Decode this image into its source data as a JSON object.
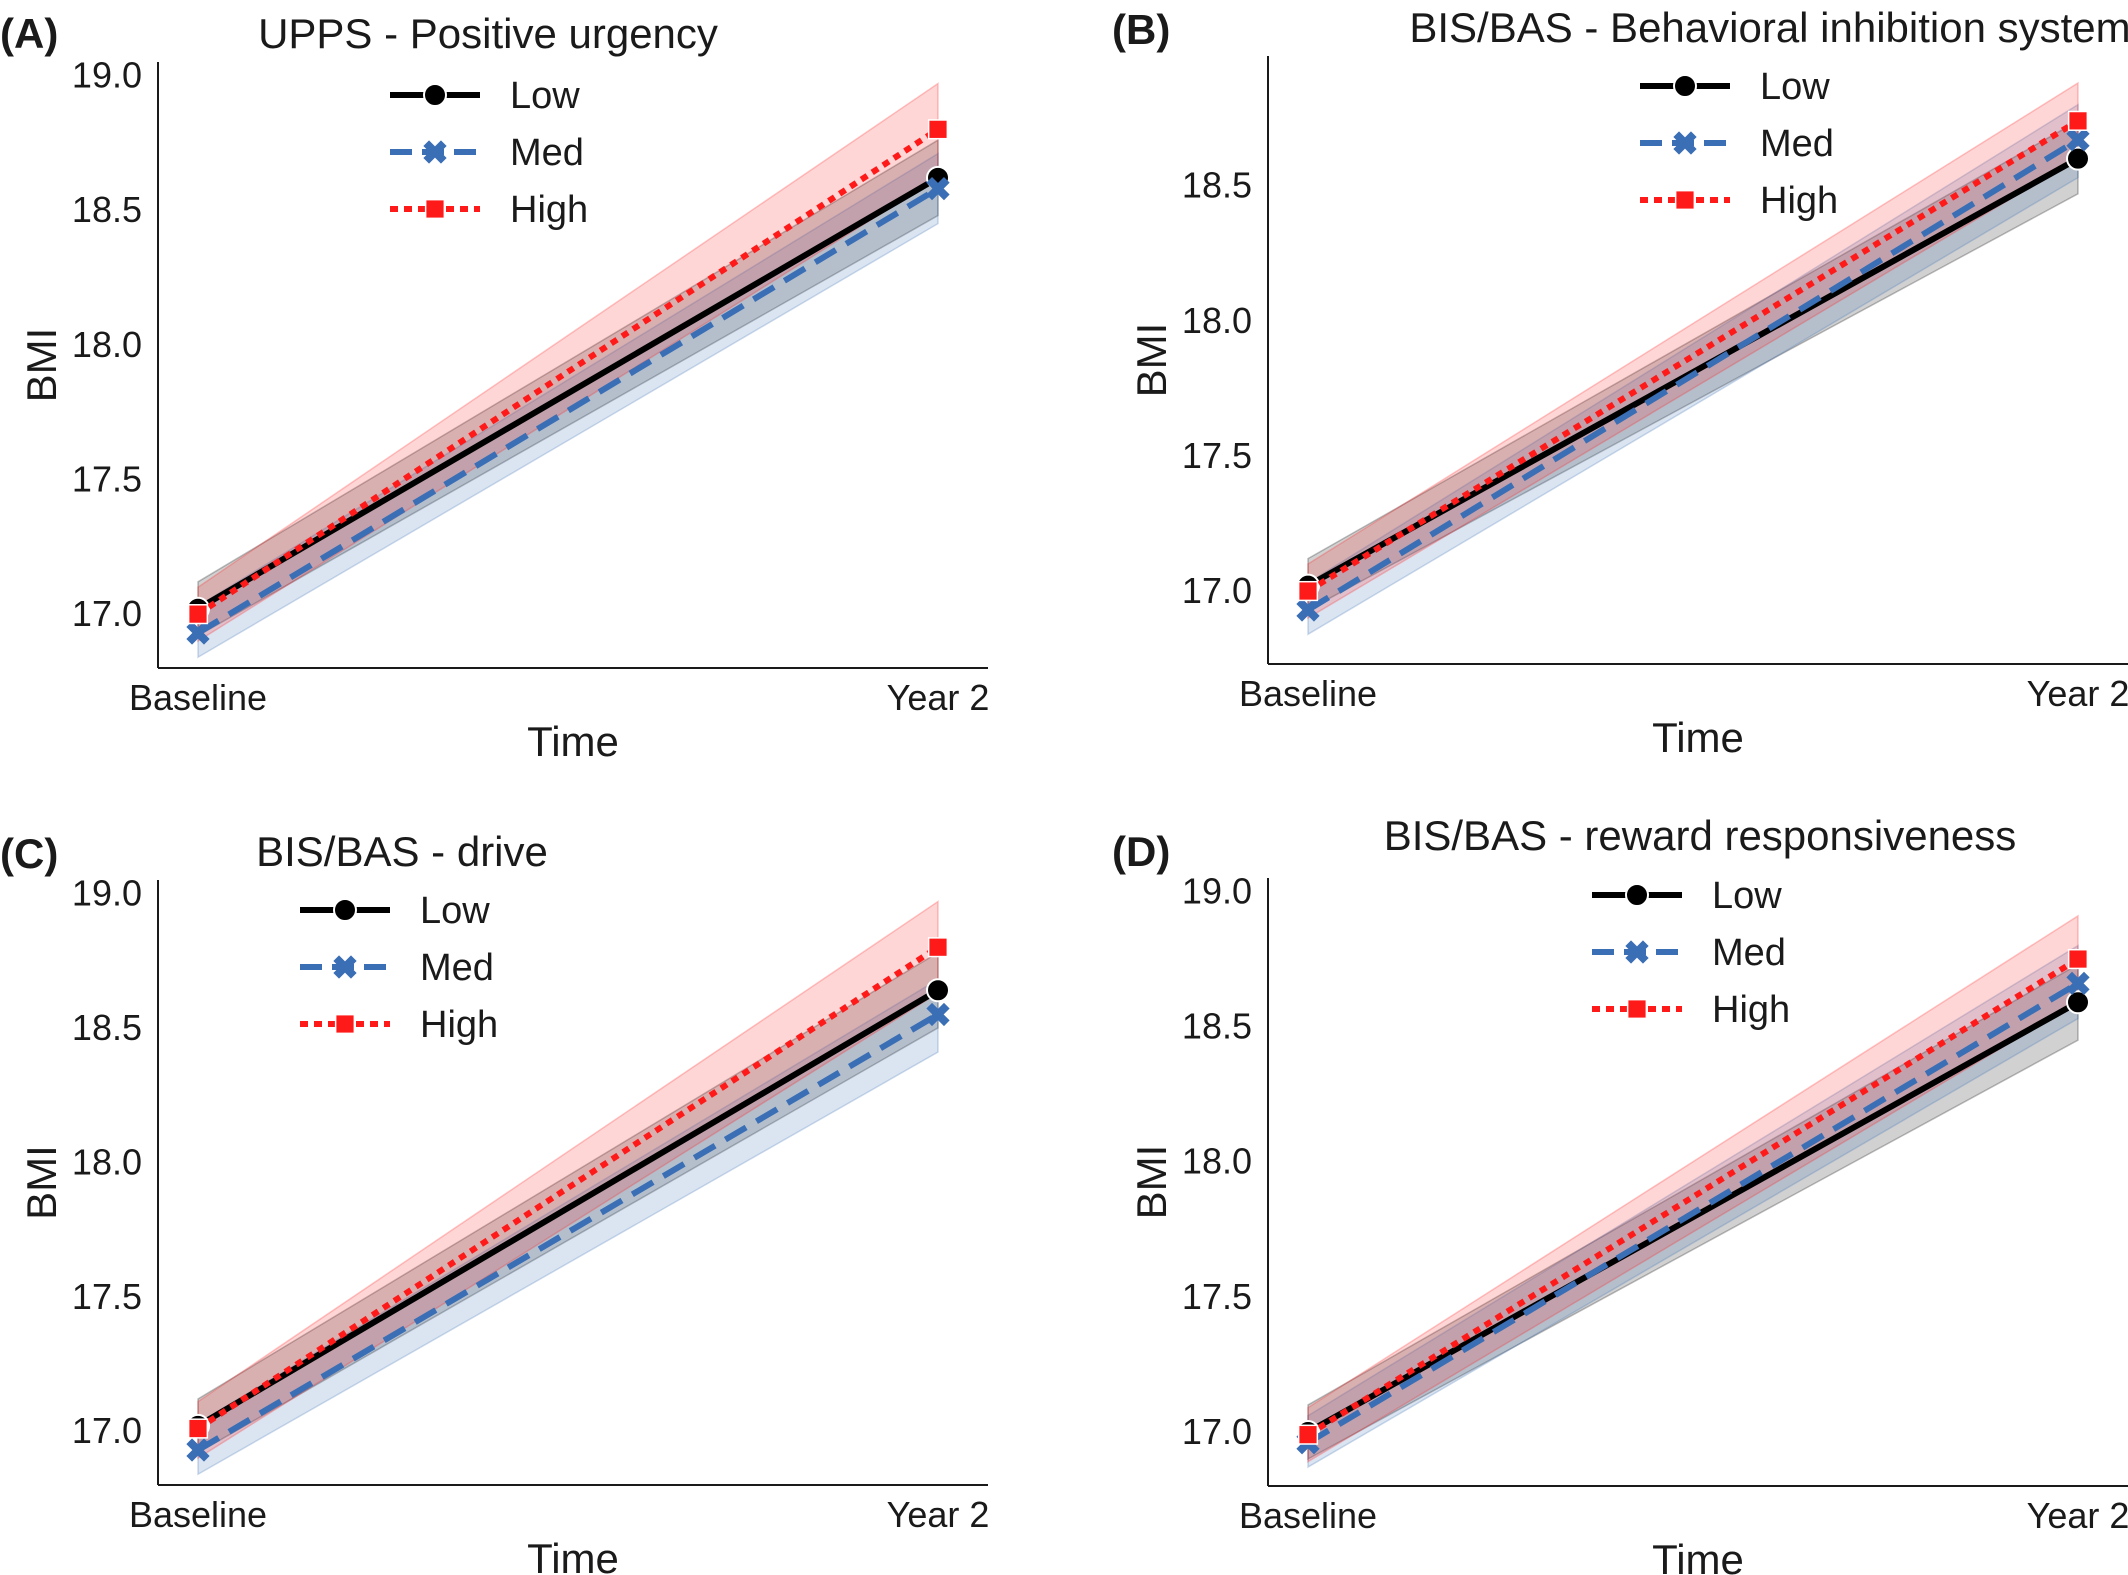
{
  "figure": {
    "series_styles": [
      {
        "name": "Low",
        "color": "#000000",
        "dash": "solid",
        "marker": "circle"
      },
      {
        "name": "Med",
        "color": "#3a6eb5",
        "dash": "dashed",
        "marker": "x"
      },
      {
        "name": "High",
        "color": "#ff1a1a",
        "dash": "dotted",
        "marker": "square"
      }
    ]
  },
  "chart_data": [
    {
      "panel": "(A)",
      "type": "line",
      "title": "UPPS - Positive urgency",
      "xlabel": "Time",
      "ylabel": "BMI",
      "categories": [
        "Baseline",
        "Year 2"
      ],
      "yticks": [
        "17.0",
        "17.5",
        "18.0",
        "18.5",
        "19.0"
      ],
      "ylim": [
        16.8,
        19.05
      ],
      "legend_position": "upper-center",
      "series": [
        {
          "name": "Low",
          "values": [
            17.02,
            18.62
          ],
          "ci_low": [
            16.92,
            18.48
          ],
          "ci_high": [
            17.12,
            18.76
          ]
        },
        {
          "name": "Med",
          "values": [
            16.93,
            18.58
          ],
          "ci_low": [
            16.84,
            18.45
          ],
          "ci_high": [
            17.03,
            18.71
          ]
        },
        {
          "name": "High",
          "values": [
            17.0,
            18.8
          ],
          "ci_low": [
            16.9,
            18.62
          ],
          "ci_high": [
            17.1,
            18.97
          ]
        }
      ]
    },
    {
      "panel": "(B)",
      "type": "line",
      "title": "BIS/BAS - Behavioral inhibition system",
      "xlabel": "Time",
      "ylabel": "BMI",
      "categories": [
        "Baseline",
        "Year 2"
      ],
      "yticks": [
        "17.0",
        "17.5",
        "18.0",
        "18.5"
      ],
      "ylim": [
        16.73,
        18.98
      ],
      "legend_position": "upper-center",
      "series": [
        {
          "name": "Low",
          "values": [
            17.02,
            18.6
          ],
          "ci_low": [
            16.93,
            18.47
          ],
          "ci_high": [
            17.12,
            18.74
          ]
        },
        {
          "name": "Med",
          "values": [
            16.93,
            18.67
          ],
          "ci_low": [
            16.84,
            18.53
          ],
          "ci_high": [
            17.03,
            18.8
          ]
        },
        {
          "name": "High",
          "values": [
            17.0,
            18.74
          ],
          "ci_low": [
            16.9,
            18.6
          ],
          "ci_high": [
            17.1,
            18.88
          ]
        }
      ]
    },
    {
      "panel": "(C)",
      "type": "line",
      "title": "BIS/BAS - drive",
      "xlabel": "Time",
      "ylabel": "BMI",
      "categories": [
        "Baseline",
        "Year 2"
      ],
      "yticks": [
        "17.0",
        "17.5",
        "18.0",
        "18.5",
        "19.0"
      ],
      "ylim": [
        16.8,
        19.05
      ],
      "legend_position": "upper-center",
      "series": [
        {
          "name": "Low",
          "values": [
            17.02,
            18.64
          ],
          "ci_low": [
            16.92,
            18.5
          ],
          "ci_high": [
            17.12,
            18.78
          ]
        },
        {
          "name": "Med",
          "values": [
            16.93,
            18.55
          ],
          "ci_low": [
            16.84,
            18.41
          ],
          "ci_high": [
            17.03,
            18.68
          ]
        },
        {
          "name": "High",
          "values": [
            17.01,
            18.8
          ],
          "ci_low": [
            16.9,
            18.63
          ],
          "ci_high": [
            17.11,
            18.97
          ]
        }
      ]
    },
    {
      "panel": "(D)",
      "type": "line",
      "title": "BIS/BAS - reward responsiveness",
      "xlabel": "Time",
      "ylabel": "BMI",
      "categories": [
        "Baseline",
        "Year 2"
      ],
      "yticks": [
        "17.0",
        "17.5",
        "18.0",
        "18.5",
        "19.0"
      ],
      "ylim": [
        16.8,
        19.05
      ],
      "legend_position": "upper-center",
      "series": [
        {
          "name": "Low",
          "values": [
            17.0,
            18.59
          ],
          "ci_low": [
            16.9,
            18.45
          ],
          "ci_high": [
            17.1,
            18.73
          ]
        },
        {
          "name": "Med",
          "values": [
            16.96,
            18.66
          ],
          "ci_low": [
            16.87,
            18.53
          ],
          "ci_high": [
            17.06,
            18.8
          ]
        },
        {
          "name": "High",
          "values": [
            16.99,
            18.75
          ],
          "ci_low": [
            16.89,
            18.59
          ],
          "ci_high": [
            17.09,
            18.91
          ]
        }
      ]
    }
  ]
}
